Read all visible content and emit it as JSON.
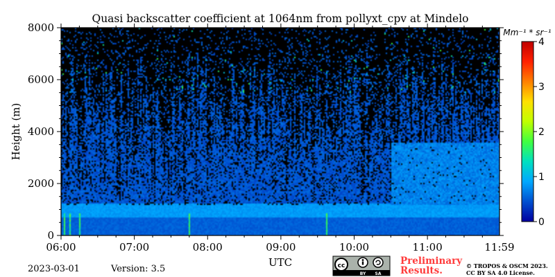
{
  "chart_data": {
    "type": "heatmap",
    "title": "Quasi backscatter coefficient at 1064nm from pollyxt_cpv at Mindelo",
    "xlabel": "UTC",
    "ylabel": "Height (m)",
    "x_range": [
      "06:00",
      "11:59"
    ],
    "xticks": [
      "06:00",
      "07:00",
      "08:00",
      "09:00",
      "10:00",
      "11:00",
      "11:59"
    ],
    "ylim": [
      0,
      8000
    ],
    "yticks": [
      "0",
      "2000",
      "4000",
      "6000",
      "8000"
    ],
    "colorbar": {
      "unit_label": "Mm⁻¹ * sr⁻¹",
      "range": [
        0,
        4
      ],
      "ticks": [
        "0",
        "1",
        "2",
        "3",
        "4"
      ],
      "colormap": "jet",
      "colors": [
        "#0000a0",
        "#0050d0",
        "#00a8ff",
        "#00e0c0",
        "#40ff40",
        "#c0ff00",
        "#ffe000",
        "#ff8000",
        "#ff2000",
        "#c00000"
      ]
    },
    "noise_color": "#000000",
    "features": {
      "boundary_layer_top_m": 1200,
      "lofted_layer_m": [
        1000,
        3600
      ],
      "lofted_layer_start": "10:30",
      "enhanced_near_surface_times": [
        "06:02",
        "06:07",
        "06:15",
        "07:45",
        "09:37"
      ],
      "typical_value": 0.3
    }
  },
  "footer": {
    "date": "2023-03-01",
    "version": "Version: 3.5",
    "preliminary_line1": "Preliminary",
    "preliminary_line2": "Results.",
    "copyright_line1": "© TROPOS & OSCM 2023.",
    "copyright_line2": "CC BY SA 4.0 License.",
    "license_badge": "cc-by-sa-badge",
    "badge_text_by": "BY",
    "badge_text_sa": "SA"
  }
}
